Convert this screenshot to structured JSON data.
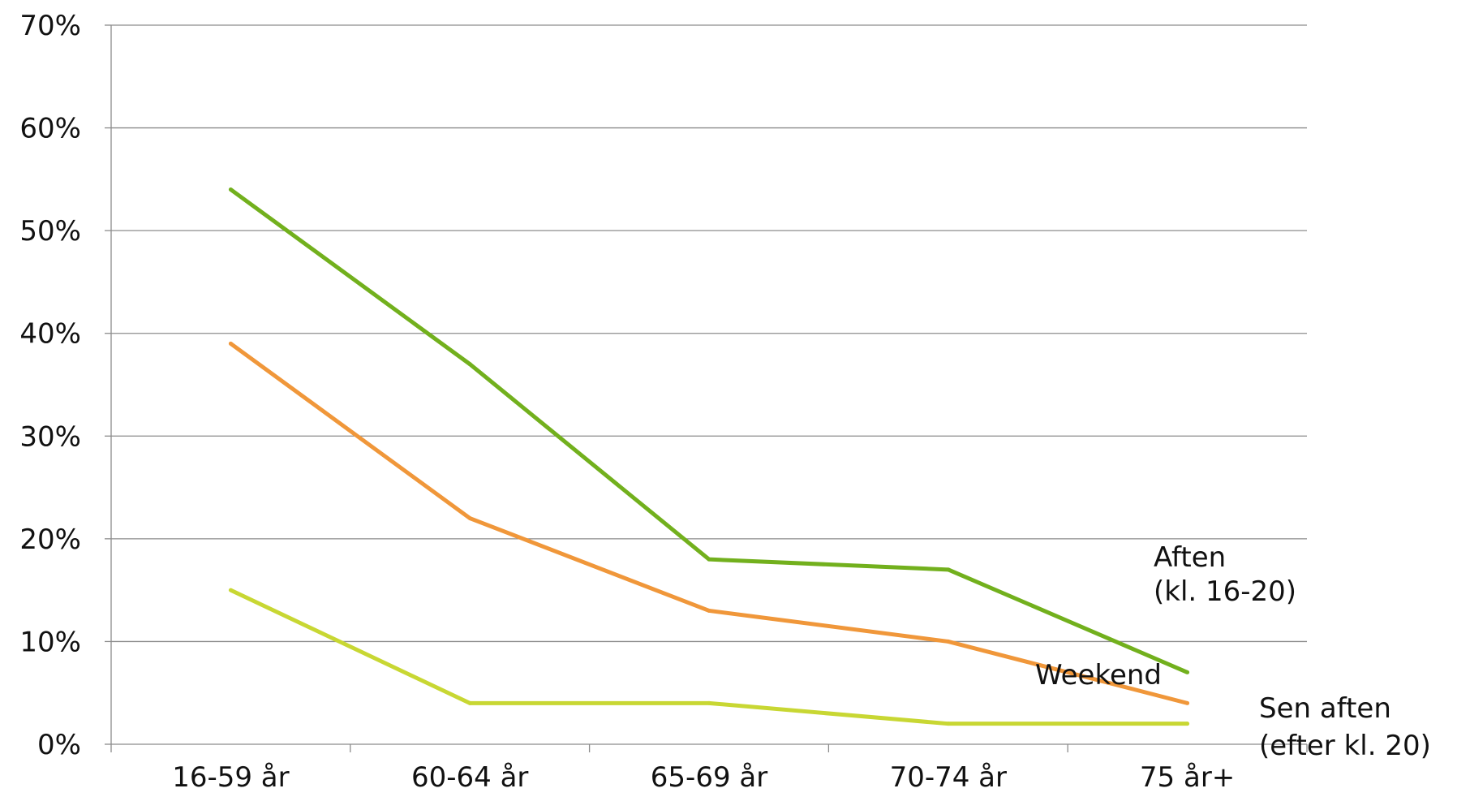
{
  "chart_data": {
    "type": "line",
    "title": "",
    "xlabel": "",
    "ylabel": "",
    "categories": [
      "16-59 år",
      "60-64 år",
      "65-69 år",
      "70-74 år",
      "75 år+"
    ],
    "ylim": [
      0,
      70
    ],
    "y_ticks": [
      "0%",
      "10%",
      "20%",
      "30%",
      "40%",
      "50%",
      "60%",
      "70%"
    ],
    "grid": true,
    "legend": "labels at line ends (right)",
    "series": [
      {
        "name_lines": [
          "Aften",
          "(kl. 16-20)"
        ],
        "color": "#72b01d",
        "values": [
          54,
          37,
          18,
          17,
          7
        ]
      },
      {
        "name_lines": [
          "Weekend"
        ],
        "color": "#f0973a",
        "values": [
          39,
          22,
          13,
          10,
          4
        ]
      },
      {
        "name_lines": [
          "Sen aften",
          "(efter kl. 20)"
        ],
        "color": "#c8d733",
        "values": [
          15,
          4,
          4,
          2,
          2
        ]
      }
    ]
  }
}
